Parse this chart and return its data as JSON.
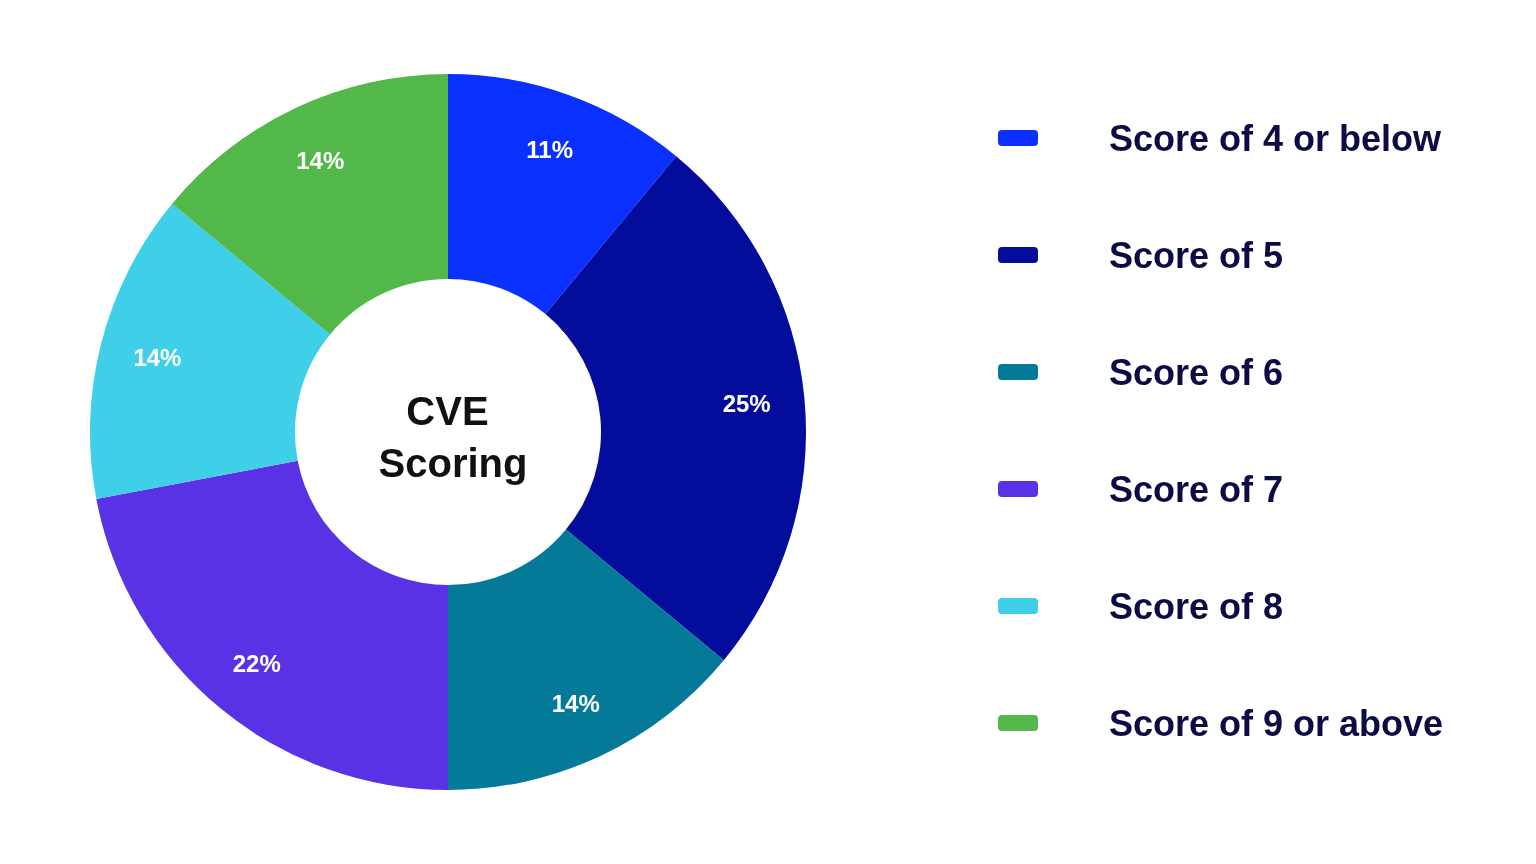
{
  "chart_data": {
    "type": "donut",
    "title": "CVE Scoring",
    "categories": [
      "Score of 4 or below",
      "Score of 5",
      "Score of 6",
      "Score of 7",
      "Score of 8",
      "Score of 9 or above"
    ],
    "values": [
      11,
      25,
      14,
      22,
      14,
      14
    ],
    "value_labels": [
      "11%",
      "25%",
      "14%",
      "22%",
      "14%",
      "14%"
    ],
    "colors": [
      "#0a30ff",
      "#040c9c",
      "#047a98",
      "#5a32e6",
      "#3fcfe8",
      "#52b84a"
    ],
    "legend": "right"
  }
}
